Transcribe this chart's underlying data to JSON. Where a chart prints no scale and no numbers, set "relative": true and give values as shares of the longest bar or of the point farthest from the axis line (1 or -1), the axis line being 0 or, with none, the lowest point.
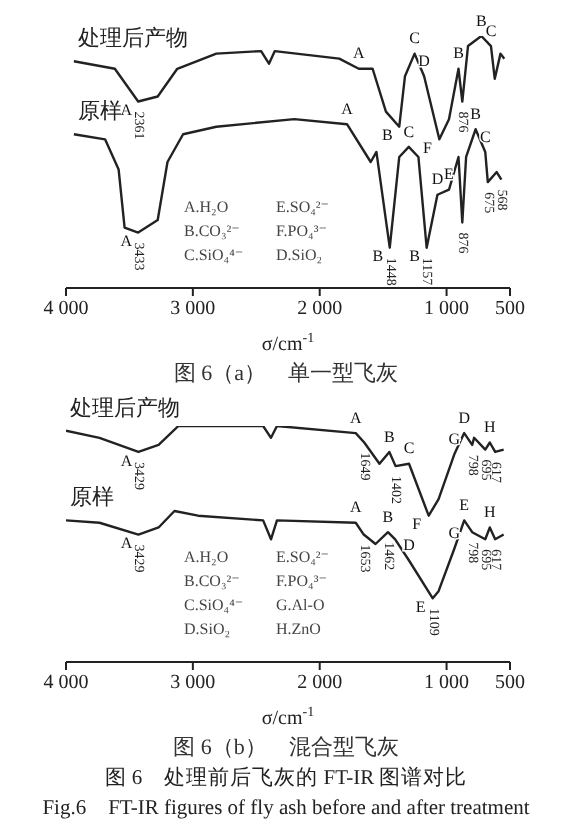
{
  "chart_data": [
    {
      "type": "line",
      "relative": true,
      "title": "图 6（a）　单一型飞灰",
      "xlabel": "σ/cm$^{-1}$",
      "xlim": [
        4000,
        500
      ],
      "xticks": [
        {
          "value": 4000,
          "label": "4 000"
        },
        {
          "value": 3000,
          "label": "3 000"
        },
        {
          "value": 2000,
          "label": "2 000"
        },
        {
          "value": 1000,
          "label": "1 000"
        },
        500
      ],
      "legend": false,
      "marker": "none",
      "line_style": "solid",
      "series": [
        {
          "name": "处理后产物",
          "color": "#222222",
          "x": [
            3938,
            3615,
            3431,
            3277,
            3123,
            2815,
            2462,
            2400,
            2354,
            1846,
            1692,
            1583,
            1478,
            1373,
            1328,
            1252,
            1177,
            1057,
            981,
            906,
            876,
            831,
            726,
            650,
            620,
            575,
            545
          ],
          "values": [
            0.9,
            0.87,
            0.74,
            0.76,
            0.87,
            0.93,
            0.94,
            0.89,
            0.94,
            0.91,
            0.87,
            0.87,
            0.7,
            0.64,
            0.84,
            0.93,
            0.84,
            0.59,
            0.67,
            0.87,
            0.74,
            0.96,
            1.0,
            0.96,
            0.83,
            0.93,
            0.91
          ]
        },
        {
          "name": "原样",
          "color": "#222222",
          "x": [
            3938,
            3692,
            3585,
            3538,
            3431,
            3277,
            3200,
            3077,
            2815,
            2200,
            1785,
            1598,
            1553,
            1448,
            1373,
            1298,
            1222,
            1157,
            1072,
            981,
            906,
            876,
            846,
            771,
            695,
            675,
            605,
            568
          ],
          "values": [
            0.61,
            0.59,
            0.47,
            0.24,
            0.22,
            0.27,
            0.5,
            0.61,
            0.64,
            0.67,
            0.65,
            0.5,
            0.54,
            0.16,
            0.52,
            0.56,
            0.52,
            0.16,
            0.37,
            0.39,
            0.52,
            0.26,
            0.52,
            0.63,
            0.54,
            0.42,
            0.46,
            0.43
          ]
        }
      ],
      "annotations": [
        "A.H₂O",
        "E.SO₄²⁻",
        "B.CO₃²⁻",
        "F.PO₄³⁻",
        "C.SiO₄⁴⁻",
        "D.SiO₂",
        {
          "text": "A",
          "x": 3431,
          "y": 0.74
        },
        {
          "text": "2361",
          "x": 3431,
          "y": 0.74
        },
        {
          "text": "A",
          "x": 1692,
          "y": 0.87
        },
        {
          "text": "B",
          "x": 1373,
          "y": 0.64
        },
        {
          "text": "C",
          "x": 1252,
          "y": 0.93
        },
        {
          "text": "D",
          "x": 1177,
          "y": 0.84
        },
        {
          "text": "F",
          "x": 1057,
          "y": 0.59
        },
        {
          "text": "B",
          "x": 906,
          "y": 0.87
        },
        {
          "text": "876",
          "x": 876,
          "y": 0.74
        },
        {
          "text": "B",
          "x": 726,
          "y": 1.0
        },
        {
          "text": "C",
          "x": 650,
          "y": 0.96
        },
        {
          "text": "A",
          "x": 3431,
          "y": 0.22
        },
        {
          "text": "3433",
          "x": 3431,
          "y": 0.22
        },
        {
          "text": "A",
          "x": 1785,
          "y": 0.65
        },
        {
          "text": "B",
          "x": 1448,
          "y": 0.16
        },
        {
          "text": "1448",
          "x": 1448,
          "y": 0.16
        },
        {
          "text": "C",
          "x": 1298,
          "y": 0.56
        },
        {
          "text": "B",
          "x": 1157,
          "y": 0.16
        },
        {
          "text": "1157",
          "x": 1157,
          "y": 0.16
        },
        {
          "text": "D",
          "x": 1072,
          "y": 0.37
        },
        {
          "text": "E",
          "x": 981,
          "y": 0.39
        },
        {
          "text": "876",
          "x": 876,
          "y": 0.26
        },
        {
          "text": "B",
          "x": 771,
          "y": 0.63
        },
        {
          "text": "C",
          "x": 695,
          "y": 0.54
        },
        {
          "text": "675",
          "x": 675,
          "y": 0.42
        },
        {
          "text": "568",
          "x": 568,
          "y": 0.43
        }
      ]
    },
    {
      "type": "line",
      "relative": true,
      "title": "图 6（b）　混合型飞灰",
      "subtitle": "图 6　处理前后飞灰的 FT-IR 图谱对比\nFig.6　FT-IR figures of fly ash before and after treatment",
      "xlabel": "σ/cm$^{-1}$",
      "xlim": [
        4000,
        500
      ],
      "xticks": [
        {
          "value": 4000,
          "label": "4 000"
        },
        {
          "value": 3000,
          "label": "3 000"
        },
        {
          "value": 2000,
          "label": "2 000"
        },
        {
          "value": 1000,
          "label": "1 000"
        },
        500
      ],
      "legend": false,
      "marker": "none",
      "line_style": "solid",
      "series": [
        {
          "name": "处理后产物",
          "color": "#222222",
          "x": [
            4000,
            3736,
            3429,
            3270,
            3114,
            2959,
            2446,
            2384,
            2337,
            1716,
            1649,
            1529,
            1451,
            1402,
            1296,
            1141,
            1063,
            939,
            861,
            798,
            783,
            695,
            659,
            617,
            550
          ],
          "values": [
            0.98,
            0.95,
            0.89,
            0.92,
            1.0,
            1.0,
            1.0,
            0.95,
            1.0,
            0.97,
            0.93,
            0.84,
            0.89,
            0.83,
            0.84,
            0.62,
            0.69,
            0.88,
            0.97,
            0.92,
            0.95,
            0.9,
            0.93,
            0.89,
            0.9
          ]
        },
        {
          "name": "原样",
          "color": "#222222",
          "x": [
            4000,
            3736,
            3429,
            3270,
            3145,
            2959,
            2446,
            2384,
            2337,
            1716,
            1653,
            1560,
            1462,
            1405,
            1296,
            1109,
            1063,
            939,
            861,
            798,
            695,
            659,
            617,
            550
          ],
          "values": [
            0.6,
            0.59,
            0.54,
            0.57,
            0.64,
            0.62,
            0.6,
            0.52,
            0.6,
            0.59,
            0.54,
            0.5,
            0.55,
            0.52,
            0.43,
            0.27,
            0.3,
            0.48,
            0.6,
            0.55,
            0.52,
            0.57,
            0.52,
            0.54
          ]
        }
      ],
      "annotations": [
        "A.H₂O",
        "E.SO₄²⁻",
        "B.CO₃²⁻",
        "F.PO₄³⁻",
        "C.SiO₄⁴⁻",
        "G.Al-O",
        "D.SiO₂",
        "H.ZnO",
        {
          "text": "A",
          "x": 3429,
          "y": 0.89
        },
        {
          "text": "3429",
          "x": 3429,
          "y": 0.89
        },
        {
          "text": "A",
          "x": 1716,
          "y": 0.97
        },
        {
          "text": "1649",
          "x": 1649,
          "y": 0.93
        },
        {
          "text": "B",
          "x": 1451,
          "y": 0.89
        },
        {
          "text": "1402",
          "x": 1402,
          "y": 0.83
        },
        {
          "text": "C",
          "x": 1296,
          "y": 0.84
        },
        {
          "text": "F",
          "x": 1141,
          "y": 0.62
        },
        {
          "text": "G",
          "x": 939,
          "y": 0.88
        },
        {
          "text": "D",
          "x": 861,
          "y": 0.97
        },
        {
          "text": "798",
          "x": 798,
          "y": 0.92
        },
        {
          "text": "695",
          "x": 695,
          "y": 0.9
        },
        {
          "text": "H",
          "x": 659,
          "y": 0.93
        },
        {
          "text": "617",
          "x": 617,
          "y": 0.89
        },
        {
          "text": "A",
          "x": 3429,
          "y": 0.54
        },
        {
          "text": "3429",
          "x": 3429,
          "y": 0.54
        },
        {
          "text": "A",
          "x": 1716,
          "y": 0.59
        },
        {
          "text": "1653",
          "x": 1653,
          "y": 0.54
        },
        {
          "text": "B",
          "x": 1462,
          "y": 0.55
        },
        {
          "text": "1462",
          "x": 1462,
          "y": 0.55
        },
        {
          "text": "D",
          "x": 1296,
          "y": 0.43
        },
        {
          "text": "E",
          "x": 1109,
          "y": 0.27
        },
        {
          "text": "1109",
          "x": 1109,
          "y": 0.27
        },
        {
          "text": "G",
          "x": 939,
          "y": 0.48
        },
        {
          "text": "E",
          "x": 861,
          "y": 0.6
        },
        {
          "text": "798",
          "x": 798,
          "y": 0.55
        },
        {
          "text": "695",
          "x": 695,
          "y": 0.52
        },
        {
          "text": "H",
          "x": 659,
          "y": 0.57
        },
        {
          "text": "617",
          "x": 617,
          "y": 0.52
        }
      ]
    }
  ]
}
